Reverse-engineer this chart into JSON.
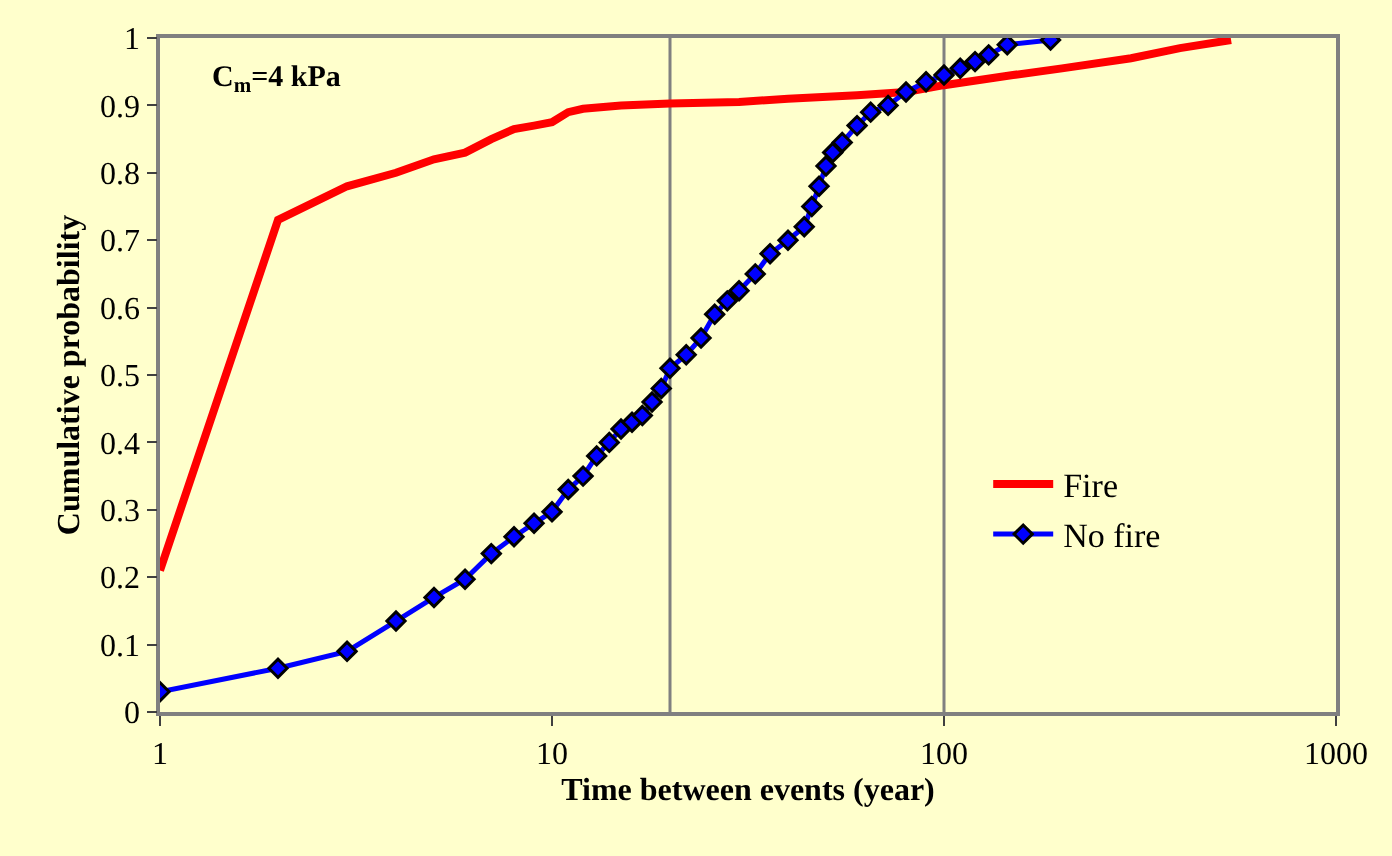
{
  "chart_data": {
    "type": "line",
    "xlabel": "Time between events (year)",
    "ylabel": "Cumulative probability",
    "annotations": [
      "C$_{m}$=4 kPa"
    ],
    "log": "x",
    "xlim": [
      1,
      1000
    ],
    "xticks": [
      1,
      10,
      100,
      1000
    ],
    "ylim": [
      0,
      1
    ],
    "yticks": [
      0,
      0.1,
      0.2,
      0.3,
      0.4,
      0.5,
      0.6,
      0.7,
      0.8,
      0.9,
      1
    ],
    "grid": false,
    "legend": "bottom right",
    "ref_lines": [
      {
        "axis": "x",
        "value": 20,
        "color": "#808080"
      },
      {
        "axis": "x",
        "value": 100,
        "color": "#808080"
      }
    ],
    "series": [
      {
        "name": "Fire",
        "color": "#ff0000",
        "marker": "none",
        "x": [
          1,
          2,
          3,
          4,
          5,
          6,
          7,
          8,
          9,
          10,
          11,
          12,
          15,
          20,
          30,
          40,
          60,
          80,
          100,
          150,
          200,
          300,
          400,
          540
        ],
        "values": [
          0.21,
          0.73,
          0.78,
          0.8,
          0.82,
          0.83,
          0.85,
          0.865,
          0.87,
          0.875,
          0.89,
          0.895,
          0.9,
          0.903,
          0.905,
          0.91,
          0.915,
          0.92,
          0.93,
          0.945,
          0.955,
          0.97,
          0.985,
          0.997
        ]
      },
      {
        "name": "No fire",
        "color": "#0000ff",
        "marker": "diamond",
        "x": [
          1,
          2,
          3,
          4,
          5,
          6,
          7,
          8,
          9,
          10,
          11,
          12,
          13,
          14,
          15,
          16,
          17,
          18,
          19,
          20,
          22,
          24,
          26,
          28,
          30,
          33,
          36,
          40,
          44,
          46,
          48,
          50,
          52,
          55,
          60,
          65,
          72,
          80,
          90,
          100,
          110,
          120,
          130,
          145,
          187
        ],
        "values": [
          0.03,
          0.065,
          0.09,
          0.135,
          0.17,
          0.197,
          0.235,
          0.26,
          0.28,
          0.297,
          0.33,
          0.35,
          0.38,
          0.4,
          0.42,
          0.43,
          0.44,
          0.46,
          0.48,
          0.51,
          0.53,
          0.555,
          0.59,
          0.61,
          0.625,
          0.65,
          0.68,
          0.7,
          0.72,
          0.75,
          0.78,
          0.81,
          0.83,
          0.845,
          0.87,
          0.89,
          0.9,
          0.92,
          0.935,
          0.945,
          0.955,
          0.965,
          0.975,
          0.99,
          0.997
        ]
      }
    ]
  }
}
